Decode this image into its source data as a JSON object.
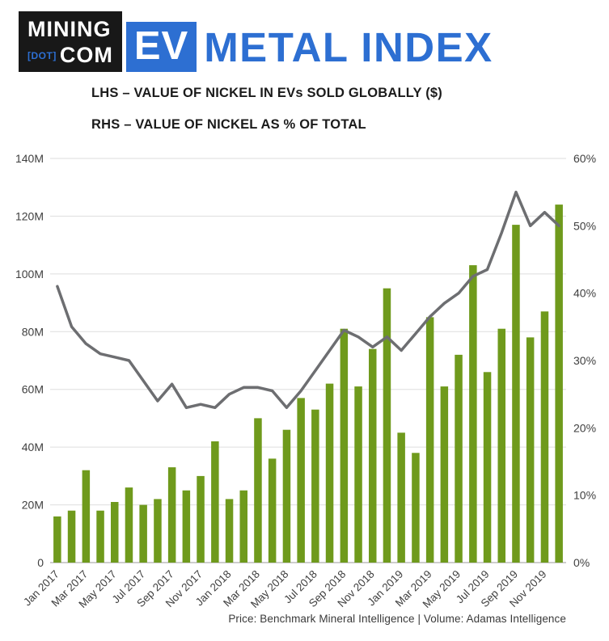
{
  "logo": {
    "mining": "MINING",
    "dot": "[DOT]",
    "com": "COM",
    "ev": "EV",
    "metal_index": "METAL INDEX"
  },
  "titles": {
    "lhs": "LHS – VALUE OF NICKEL IN EVs SOLD GLOBALLY ($)",
    "rhs": "RHS – VALUE OF NICKEL AS % OF TOTAL"
  },
  "footer": {
    "source": "Price: Benchmark Mineral Intelligence | Volume: Adamas Intelligence"
  },
  "colors": {
    "bar_green": "#6f9a1c",
    "line_gray": "#6d6e71",
    "brand_blue": "#2d6fd2",
    "logo_black": "#181818",
    "gridline": "#dedede",
    "axis_line": "#9b9b9b",
    "tick_text": "#3f3f3f"
  },
  "chart_data": {
    "type": "bar",
    "subtype": "combo-bar-line-dual-axis",
    "title": "EV METAL INDEX — Nickel",
    "categories": [
      "Jan 2017",
      "Feb 2017",
      "Mar 2017",
      "Apr 2017",
      "May 2017",
      "Jun 2017",
      "Jul 2017",
      "Aug 2017",
      "Sep 2017",
      "Oct 2017",
      "Nov 2017",
      "Dec 2017",
      "Jan 2018",
      "Feb 2018",
      "Mar 2018",
      "Apr 2018",
      "May 2018",
      "Jun 2018",
      "Jul 2018",
      "Aug 2018",
      "Sep 2018",
      "Oct 2018",
      "Nov 2018",
      "Dec 2018",
      "Jan 2019",
      "Feb 2019",
      "Mar 2019",
      "Apr 2019",
      "May 2019",
      "Jun 2019",
      "Jul 2019",
      "Aug 2019",
      "Sep 2019",
      "Oct 2019",
      "Nov 2019",
      "Dec 2019"
    ],
    "series": [
      {
        "name": "Value of nickel in EVs sold globally ($, millions)",
        "type": "bar",
        "axis": "left",
        "color": "#6f9a1c",
        "values": [
          16,
          18,
          32,
          18,
          21,
          26,
          20,
          22,
          33,
          25,
          30,
          42,
          22,
          25,
          50,
          36,
          46,
          57,
          53,
          62,
          81,
          61,
          74,
          95,
          45,
          38,
          85,
          61,
          72,
          103,
          66,
          81,
          117,
          78,
          87,
          124
        ]
      },
      {
        "name": "Value of nickel as % of total",
        "type": "line",
        "axis": "right",
        "color": "#6d6e71",
        "values": [
          41,
          35,
          32.5,
          31,
          30.5,
          30,
          27,
          24,
          26.5,
          23,
          23.5,
          23,
          25,
          26,
          26,
          25.5,
          23,
          25.5,
          28.5,
          31.5,
          34.5,
          33.5,
          32,
          33.5,
          31.5,
          34,
          36.5,
          38.5,
          40,
          42.5,
          43.5,
          49,
          55,
          50,
          52,
          50
        ]
      }
    ],
    "left_axis": {
      "min": 0,
      "max": 140,
      "unit": "USD millions",
      "tick_labels": [
        "140M",
        "120M",
        "100M",
        "80M",
        "60M",
        "40M",
        "20M",
        "0"
      ]
    },
    "right_axis": {
      "min": 0,
      "max": 60,
      "unit": "%",
      "tick_labels": [
        "60%",
        "50%",
        "40%",
        "30%",
        "20%",
        "10%",
        "0%"
      ]
    },
    "x_tick_labels_shown": [
      "Jan 2017",
      "Mar 2017",
      "May 2017",
      "Jul 2017",
      "Sep 2017",
      "Nov 2017",
      "Jan 2018",
      "Mar 2018",
      "May 2018",
      "Jul 2018",
      "Sep 2018",
      "Nov 2018",
      "Jan 2019",
      "Mar 2019",
      "May 2019",
      "Jul 2019",
      "Sep 2019",
      "Nov 2019"
    ],
    "grid": true,
    "legend": false
  }
}
